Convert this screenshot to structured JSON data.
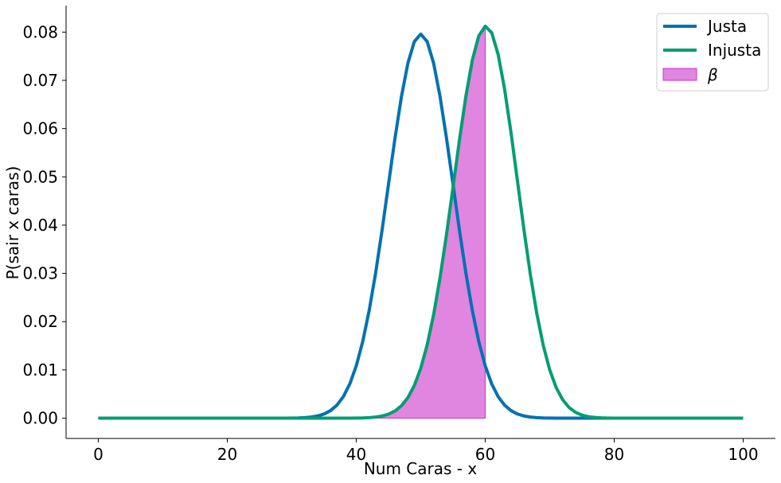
{
  "chart_data": {
    "type": "line",
    "title": "",
    "xlabel": "Num Caras - x",
    "ylabel": "P(sair x caras)",
    "xlim": [
      -5,
      105
    ],
    "ylim": [
      -0.0042,
      0.0855
    ],
    "x_ticks": [
      0,
      20,
      40,
      60,
      80,
      100
    ],
    "y_ticks": [
      0.0,
      0.01,
      0.02,
      0.03,
      0.04,
      0.05,
      0.06,
      0.07,
      0.08
    ],
    "x_tick_labels": [
      "0",
      "20",
      "40",
      "60",
      "80",
      "100"
    ],
    "y_tick_labels": [
      "0.00",
      "0.01",
      "0.02",
      "0.03",
      "0.04",
      "0.05",
      "0.06",
      "0.07",
      "0.08"
    ],
    "grid": false,
    "legend_position": "top-right",
    "series": [
      {
        "name": "Justa",
        "distribution": "binomial",
        "n": 100,
        "p": 0.5,
        "x_range": [
          0,
          100
        ],
        "color": "#0072B2"
      },
      {
        "name": "Injusta",
        "distribution": "binomial",
        "n": 100,
        "p": 0.6,
        "x_range": [
          0,
          100
        ],
        "color": "#009E73"
      }
    ],
    "shaded_region": {
      "name": "β",
      "under_series": "Injusta",
      "x_from": 0,
      "x_to": 60,
      "color": "#CC33CC"
    }
  }
}
